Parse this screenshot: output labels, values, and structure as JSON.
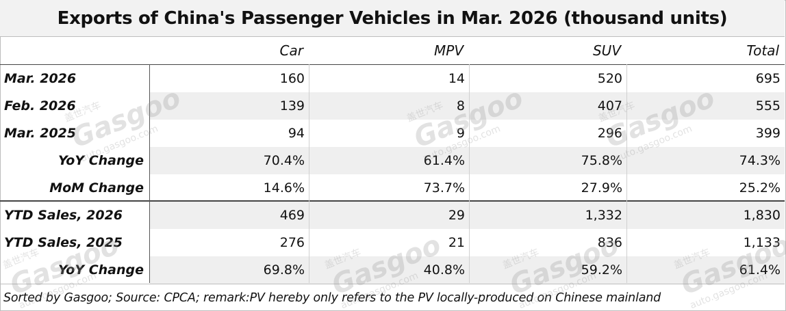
{
  "title": "Exports of China's Passenger Vehicles in Mar. 2026 (thousand units)",
  "columns": [
    "Car",
    "MPV",
    "SUV",
    "Total"
  ],
  "rows": [
    {
      "label": "Mar. 2026",
      "values": [
        "160",
        "14",
        "520",
        "695"
      ]
    },
    {
      "label": "Feb. 2026",
      "values": [
        "139",
        "8",
        "407",
        "555"
      ]
    },
    {
      "label": "Mar. 2025",
      "values": [
        "94",
        "9",
        "296",
        "399"
      ]
    },
    {
      "label": "YoY Change",
      "values": [
        "70.4%",
        "61.4%",
        "75.8%",
        "74.3%"
      ]
    },
    {
      "label": "MoM Change",
      "values": [
        "14.6%",
        "73.7%",
        "27.9%",
        "25.2%"
      ]
    },
    {
      "label": "YTD Sales, 2026",
      "values": [
        "469",
        "29",
        "1,332",
        "1,830"
      ]
    },
    {
      "label": "YTD Sales, 2025",
      "values": [
        "276",
        "21",
        "836",
        "1,133"
      ]
    },
    {
      "label": "YoY Change",
      "values": [
        "69.8%",
        "40.8%",
        "59.2%",
        "61.4%"
      ]
    }
  ],
  "footer": "Sorted by Gasgoo; Source: CPCA; remark:PV hereby only refers to the PV locally-produced on Chinese mainland",
  "watermark": {
    "brand": "Gasgoo",
    "url": "auto.gasgoo.com",
    "cn": "盖世汽车"
  }
}
